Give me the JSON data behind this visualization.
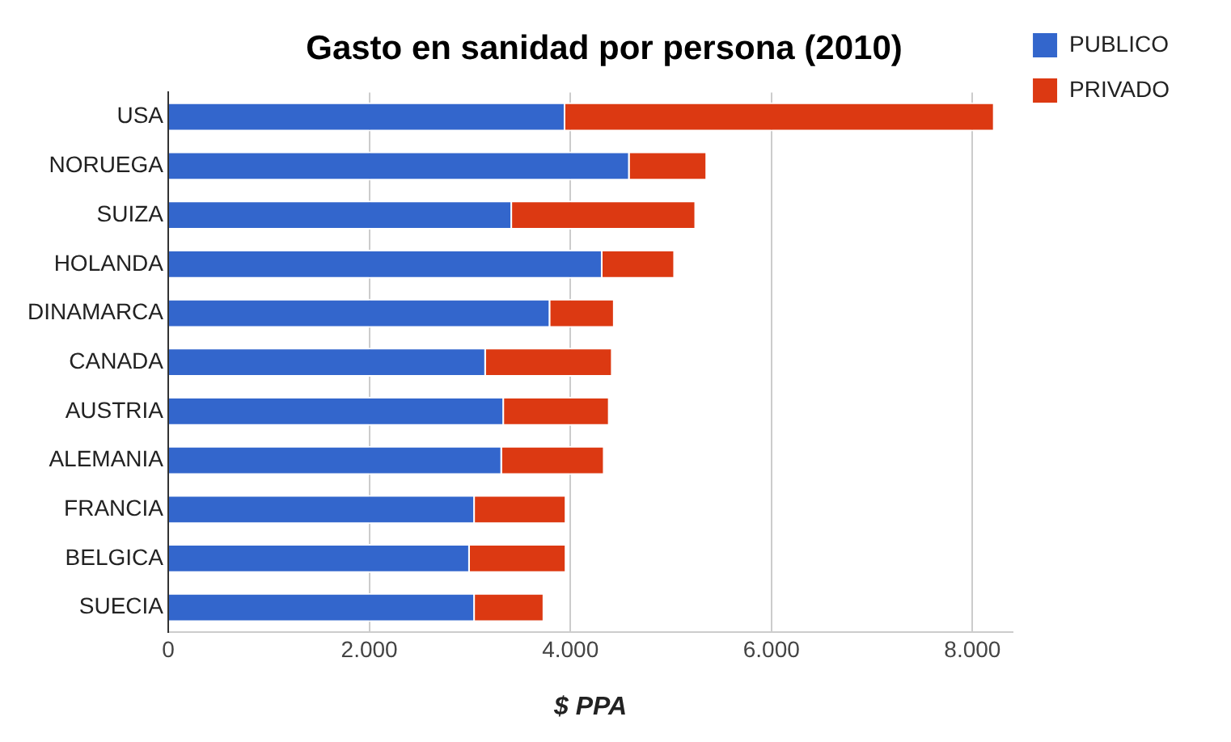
{
  "chart_data": {
    "type": "bar",
    "orientation": "horizontal",
    "stacked": true,
    "title": "Gasto en sanidad por persona (2010)",
    "xlabel": "$ PPA",
    "categories": [
      "USA",
      "NORUEGA",
      "SUIZA",
      "HOLANDA",
      "DINAMARCA",
      "CANADA",
      "AUSTRIA",
      "ALEMANIA",
      "FRANCIA",
      "BELGICA",
      "SUECIA"
    ],
    "series": [
      {
        "name": "PUBLICO",
        "color": "#3366cc",
        "values": [
          3950,
          4590,
          3420,
          4320,
          3800,
          3160,
          3340,
          3320,
          3050,
          3000,
          3050
        ]
      },
      {
        "name": "PRIVADO",
        "color": "#dc3912",
        "values": [
          4270,
          770,
          1830,
          720,
          640,
          1260,
          1050,
          1020,
          910,
          960,
          690
        ]
      }
    ],
    "xlim": [
      0,
      8400
    ],
    "xticks": [
      {
        "value": 0,
        "label": "0"
      },
      {
        "value": 2000,
        "label": "2.000"
      },
      {
        "value": 4000,
        "label": "4.000"
      },
      {
        "value": 6000,
        "label": "6.000"
      },
      {
        "value": 8000,
        "label": "8.000"
      }
    ],
    "grid": "x",
    "legend": "top right"
  }
}
